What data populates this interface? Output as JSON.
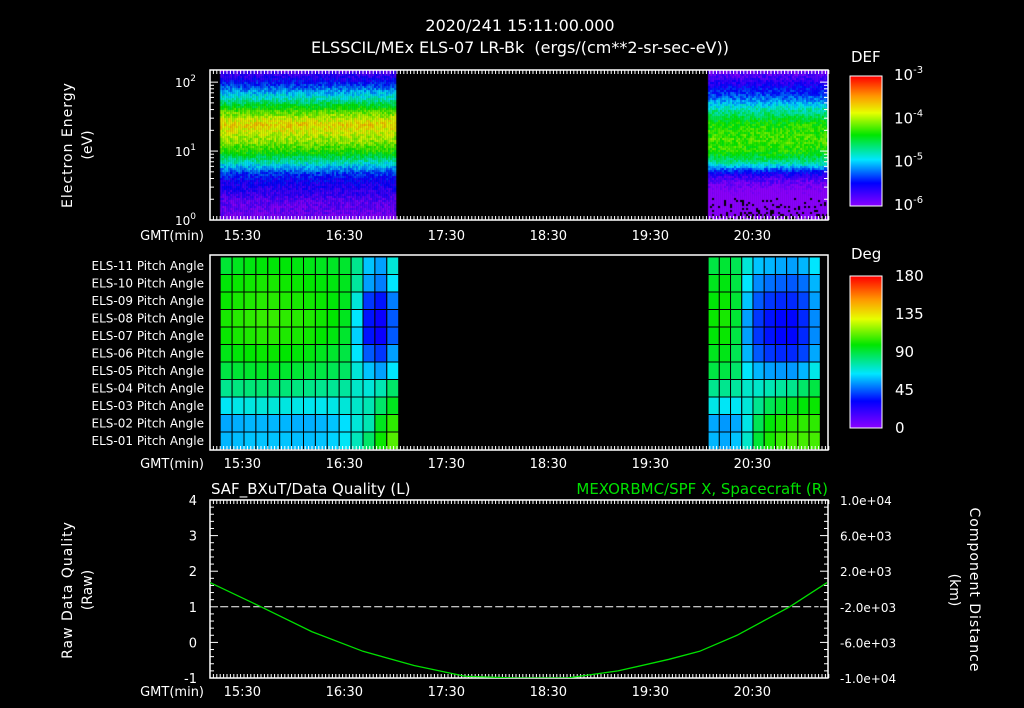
{
  "header": {
    "timestamp": "2020/241 15:11:00.000",
    "title": "ELSSCIL/MEx ELS-07 LR-Bk  (ergs/(cm**2-sr-sec-eV))"
  },
  "time_axis": {
    "label": "GMT(min)",
    "start": "15:11",
    "end": "21:15",
    "tick_labels": [
      "15:30",
      "16:30",
      "17:30",
      "18:30",
      "19:30",
      "20:30"
    ],
    "tick_minutes": [
      19,
      79,
      139,
      199,
      259,
      319
    ]
  },
  "chart_data": [
    {
      "type": "heatmap",
      "name": "energy-spectrogram",
      "ylabel": "Electron Energy",
      "yunits": "(eV)",
      "yscale": "log",
      "ylim": [
        1,
        150
      ],
      "ytick_labels": [
        {
          "base": "10",
          "exp": "0",
          "value": 1
        },
        {
          "base": "10",
          "exp": "1",
          "value": 10
        },
        {
          "base": "10",
          "exp": "2",
          "value": 100
        }
      ],
      "colorbar": {
        "label": "DEF",
        "scale": "log",
        "range": [
          1e-06,
          0.001
        ],
        "tick_labels": [
          {
            "base": "10",
            "exp": "-3"
          },
          {
            "base": "10",
            "exp": "-4"
          },
          {
            "base": "10",
            "exp": "-5"
          },
          {
            "base": "10",
            "exp": "-6"
          }
        ]
      },
      "data_intervals": [
        {
          "start_min": 6,
          "end_min": 109,
          "energy_eV": [
            1,
            2,
            3,
            4,
            5,
            7,
            10,
            15,
            25,
            40,
            60,
            100,
            150
          ],
          "log_def": [
            -6.0,
            -5.8,
            -5.6,
            -5.5,
            -5.3,
            -4.8,
            -4.3,
            -4.0,
            -3.7,
            -4.2,
            -4.8,
            -5.4,
            -5.8
          ]
        },
        {
          "start_min": 293,
          "end_min": 363,
          "energy_eV": [
            1,
            2,
            3,
            4,
            5,
            7,
            10,
            15,
            25,
            40,
            60,
            100,
            150
          ],
          "log_def": [
            -6.4,
            -6.2,
            -6.0,
            -5.8,
            -5.5,
            -4.7,
            -4.3,
            -4.2,
            -4.3,
            -4.7,
            -5.2,
            -5.6,
            -5.9
          ]
        }
      ]
    },
    {
      "type": "heatmap",
      "name": "pitch-angle",
      "rows": [
        "ELS-11 Pitch Angle",
        "ELS-10 Pitch Angle",
        "ELS-09 Pitch Angle",
        "ELS-08 Pitch Angle",
        "ELS-07 Pitch Angle",
        "ELS-06 Pitch Angle",
        "ELS-05 Pitch Angle",
        "ELS-04 Pitch Angle",
        "ELS-03 Pitch Angle",
        "ELS-02 Pitch Angle",
        "ELS-01 Pitch Angle"
      ],
      "colorbar": {
        "label": "Deg",
        "range": [
          0,
          180
        ],
        "tick_labels": [
          "180",
          "135",
          "90",
          "45",
          "0"
        ]
      },
      "blocks": [
        {
          "start_min": 6,
          "end_min": 111,
          "values": [
            [
              92,
              95,
              97,
              98,
              98,
              98,
              97,
              96,
              95,
              94,
              93,
              80,
              60,
              55,
              70
            ],
            [
              98,
              100,
              101,
              102,
              102,
              101,
              100,
              99,
              98,
              97,
              95,
              78,
              55,
              50,
              65
            ],
            [
              100,
              102,
              103,
              104,
              104,
              103,
              102,
              101,
              100,
              98,
              95,
              70,
              40,
              35,
              50
            ],
            [
              102,
              104,
              105,
              106,
              106,
              105,
              104,
              103,
              101,
              99,
              95,
              65,
              35,
              30,
              45
            ],
            [
              100,
              102,
              103,
              104,
              104,
              103,
              102,
              101,
              99,
              97,
              93,
              62,
              35,
              30,
              45
            ],
            [
              96,
              98,
              99,
              100,
              100,
              99,
              98,
              97,
              95,
              93,
              90,
              65,
              45,
              40,
              55
            ],
            [
              90,
              92,
              93,
              94,
              94,
              93,
              92,
              91,
              90,
              88,
              86,
              70,
              60,
              55,
              65
            ],
            [
              80,
              82,
              83,
              84,
              84,
              83,
              82,
              81,
              80,
              79,
              78,
              72,
              70,
              75,
              85
            ],
            [
              66,
              68,
              69,
              70,
              70,
              69,
              68,
              67,
              67,
              68,
              70,
              72,
              75,
              85,
              95
            ],
            [
              56,
              57,
              58,
              58,
              58,
              58,
              57,
              57,
              58,
              60,
              64,
              70,
              75,
              95,
              105
            ],
            [
              58,
              59,
              60,
              60,
              60,
              60,
              59,
              59,
              60,
              62,
              66,
              74,
              85,
              100,
              110
            ]
          ]
        },
        {
          "start_min": 293,
          "end_min": 359,
          "values": [
            [
              90,
              92,
              88,
              70,
              60,
              58,
              56,
              55,
              58,
              65
            ],
            [
              95,
              97,
              90,
              65,
              52,
              48,
              46,
              45,
              48,
              58
            ],
            [
              98,
              100,
              92,
              60,
              45,
              40,
              38,
              38,
              42,
              55
            ],
            [
              100,
              102,
              92,
              55,
              40,
              35,
              33,
              33,
              38,
              52
            ],
            [
              98,
              100,
              90,
              55,
              40,
              35,
              33,
              33,
              38,
              52
            ],
            [
              95,
              96,
              88,
              58,
              45,
              40,
              38,
              38,
              42,
              56
            ],
            [
              90,
              90,
              85,
              65,
              58,
              55,
              54,
              54,
              58,
              68
            ],
            [
              80,
              80,
              78,
              72,
              72,
              75,
              78,
              80,
              85,
              90
            ],
            [
              68,
              66,
              66,
              70,
              80,
              88,
              92,
              95,
              98,
              100
            ],
            [
              56,
              54,
              56,
              68,
              88,
              98,
              102,
              104,
              105,
              105
            ],
            [
              58,
              56,
              60,
              72,
              92,
              102,
              106,
              108,
              108,
              108
            ]
          ]
        }
      ]
    },
    {
      "type": "line",
      "name": "data-quality-and-position",
      "title_left": "SAF_BXuT/Data Quality (L)",
      "title_right": "MEXORBMC/SPF X, Spacecraft (R)",
      "ylabel_left": "Raw Data Quality",
      "yunits_left": "(Raw)",
      "ylabel_right": "Component Distance",
      "yunits_right": "(km)",
      "ylim_left": [
        -1,
        4
      ],
      "ylim_right": [
        -10000,
        10000
      ],
      "left_tick_labels": [
        "4",
        "3",
        "2",
        "1",
        "0",
        "-1"
      ],
      "left_tick_values": [
        4,
        3,
        2,
        1,
        0,
        -1
      ],
      "right_tick_labels": [
        "1.0e+04",
        "6.0e+03",
        "2.0e+03",
        "-2.0e+03",
        "-6.0e+03",
        "-1.0e+04"
      ],
      "right_tick_values": [
        10000,
        6000,
        2000,
        -2000,
        -6000,
        -10000
      ],
      "series": [
        {
          "name": "Data Quality",
          "axis": "left",
          "color": "#ffffff",
          "style": "dashed",
          "x_min": [
            6,
            358
          ],
          "y": [
            1,
            1
          ]
        },
        {
          "name": "SPF X",
          "axis": "right",
          "color": "#00e000",
          "style": "solid",
          "x_min": [
            0,
            30,
            60,
            90,
            120,
            150,
            180,
            210,
            240,
            270,
            288,
            310,
            341,
            363
          ],
          "y": [
            720,
            -2000,
            -4800,
            -7000,
            -8600,
            -9800,
            -10300,
            -10300,
            -9200,
            -7900,
            -7000,
            -5200,
            -2000,
            720
          ]
        }
      ]
    }
  ]
}
